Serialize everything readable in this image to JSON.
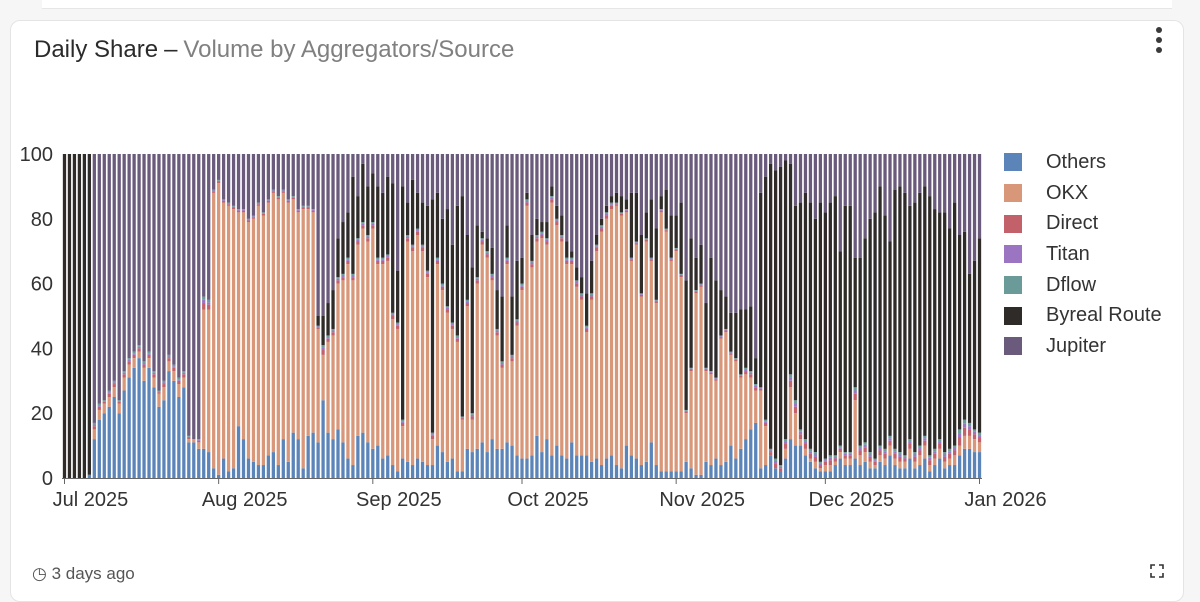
{
  "header": {
    "title": "Daily Share",
    "separator": "–",
    "subtitle": "Volume by Aggregators/Source",
    "menu_icon": "more-vertical-icon"
  },
  "footer": {
    "clock_icon": "clock-icon",
    "updated": "3 days ago",
    "expand_icon": "expand-icon"
  },
  "chart_data": {
    "type": "bar",
    "stacked": true,
    "title": "Daily Share – Volume by Aggregators/Source",
    "xlabel": "",
    "ylabel": "",
    "ylim": [
      0,
      100
    ],
    "yticks": [
      0,
      20,
      40,
      60,
      80,
      100
    ],
    "x_start": "2025-07-01",
    "x_end": "2026-01-15",
    "x_ticks": [
      {
        "label": "Jul 2025",
        "day": 0
      },
      {
        "label": "Aug 2025",
        "day": 31
      },
      {
        "label": "Sep 2025",
        "day": 62
      },
      {
        "label": "Oct 2025",
        "day": 92
      },
      {
        "label": "Nov 2025",
        "day": 123
      },
      {
        "label": "Dec 2025",
        "day": 153
      },
      {
        "label": "Jan 2026",
        "day": 184
      }
    ],
    "legend_position": "right",
    "series_order_bottom_to_top": [
      "Others",
      "OKX",
      "Direct",
      "Titan",
      "Dflow",
      "Byreal Route",
      "Jupiter"
    ],
    "legend": [
      {
        "name": "Others",
        "color": "#5b84b8"
      },
      {
        "name": "OKX",
        "color": "#d9977a"
      },
      {
        "name": "Direct",
        "color": "#c2616a"
      },
      {
        "name": "Titan",
        "color": "#9b74c2"
      },
      {
        "name": "Dflow",
        "color": "#6b9b98"
      },
      {
        "name": "Byreal Route",
        "color": "#2e2b28"
      },
      {
        "name": "Jupiter",
        "color": "#6a5a7c"
      }
    ],
    "daily_values_note": "per day: Others, OKX, Direct+Titan+Dflow (small), Byreal Route; Jupiter fills remainder to 100",
    "daily": [
      {
        "o": 0,
        "k": 0,
        "m": 0,
        "b": 100
      },
      {
        "o": 0,
        "k": 0,
        "m": 0,
        "b": 100
      },
      {
        "o": 0,
        "k": 0,
        "m": 0,
        "b": 100
      },
      {
        "o": 0,
        "k": 0,
        "m": 0,
        "b": 100
      },
      {
        "o": 0,
        "k": 0,
        "m": 0,
        "b": 100
      },
      {
        "o": 1,
        "k": 0,
        "m": 0,
        "b": 99
      },
      {
        "o": 12,
        "k": 3,
        "m": 2,
        "b": 0
      },
      {
        "o": 18,
        "k": 3,
        "m": 2,
        "b": 0
      },
      {
        "o": 20,
        "k": 3,
        "m": 1,
        "b": 0
      },
      {
        "o": 22,
        "k": 3,
        "m": 2,
        "b": 0
      },
      {
        "o": 25,
        "k": 3,
        "m": 2,
        "b": 0
      },
      {
        "o": 20,
        "k": 3,
        "m": 1,
        "b": 0
      },
      {
        "o": 27,
        "k": 4,
        "m": 2,
        "b": 0
      },
      {
        "o": 31,
        "k": 4,
        "m": 2,
        "b": 0
      },
      {
        "o": 34,
        "k": 3,
        "m": 2,
        "b": 0
      },
      {
        "o": 37,
        "k": 2,
        "m": 2,
        "b": 0
      },
      {
        "o": 30,
        "k": 4,
        "m": 2,
        "b": 0
      },
      {
        "o": 34,
        "k": 3,
        "m": 2,
        "b": 0
      },
      {
        "o": 28,
        "k": 3,
        "m": 2,
        "b": 0
      },
      {
        "o": 22,
        "k": 4,
        "m": 1,
        "b": 0
      },
      {
        "o": 24,
        "k": 4,
        "m": 2,
        "b": 0
      },
      {
        "o": 33,
        "k": 3,
        "m": 2,
        "b": 0
      },
      {
        "o": 30,
        "k": 3,
        "m": 2,
        "b": 0
      },
      {
        "o": 25,
        "k": 4,
        "m": 2,
        "b": 0
      },
      {
        "o": 28,
        "k": 3,
        "m": 2,
        "b": 0
      },
      {
        "o": 11,
        "k": 1,
        "m": 1,
        "b": 0
      },
      {
        "o": 11,
        "k": 1,
        "m": 0,
        "b": 0
      },
      {
        "o": 9,
        "k": 2,
        "m": 1,
        "b": 0
      },
      {
        "o": 9,
        "k": 43,
        "m": 4,
        "b": 0
      },
      {
        "o": 8,
        "k": 44,
        "m": 3,
        "b": 0
      },
      {
        "o": 3,
        "k": 85,
        "m": 1,
        "b": 0
      },
      {
        "o": 1,
        "k": 90,
        "m": 1,
        "b": 0
      },
      {
        "o": 6,
        "k": 79,
        "m": 1,
        "b": 0
      },
      {
        "o": 2,
        "k": 82,
        "m": 1,
        "b": 0
      },
      {
        "o": 3,
        "k": 80,
        "m": 1,
        "b": 0
      },
      {
        "o": 16,
        "k": 66,
        "m": 1,
        "b": 0
      },
      {
        "o": 12,
        "k": 70,
        "m": 1,
        "b": 0
      },
      {
        "o": 6,
        "k": 73,
        "m": 1,
        "b": 0
      },
      {
        "o": 5,
        "k": 75,
        "m": 1,
        "b": 0
      },
      {
        "o": 4,
        "k": 80,
        "m": 1,
        "b": 0
      },
      {
        "o": 4,
        "k": 77,
        "m": 1,
        "b": 0
      },
      {
        "o": 7,
        "k": 78,
        "m": 1,
        "b": 0
      },
      {
        "o": 8,
        "k": 80,
        "m": 1,
        "b": 0
      },
      {
        "o": 4,
        "k": 82,
        "m": 1,
        "b": 0
      },
      {
        "o": 12,
        "k": 76,
        "m": 1,
        "b": 0
      },
      {
        "o": 5,
        "k": 80,
        "m": 1,
        "b": 0
      },
      {
        "o": 14,
        "k": 72,
        "m": 1,
        "b": 0
      },
      {
        "o": 12,
        "k": 70,
        "m": 1,
        "b": 0
      },
      {
        "o": 3,
        "k": 80,
        "m": 1,
        "b": 0
      },
      {
        "o": 13,
        "k": 70,
        "m": 1,
        "b": 0
      },
      {
        "o": 14,
        "k": 68,
        "m": 1,
        "b": 0
      },
      {
        "o": 11,
        "k": 35,
        "m": 1,
        "b": 3
      },
      {
        "o": 24,
        "k": 14,
        "m": 3,
        "b": 9
      },
      {
        "o": 14,
        "k": 28,
        "m": 2,
        "b": 10
      },
      {
        "o": 12,
        "k": 32,
        "m": 2,
        "b": 12
      },
      {
        "o": 15,
        "k": 45,
        "m": 2,
        "b": 12
      },
      {
        "o": 11,
        "k": 50,
        "m": 2,
        "b": 16
      },
      {
        "o": 6,
        "k": 60,
        "m": 2,
        "b": 14
      },
      {
        "o": 4,
        "k": 57,
        "m": 2,
        "b": 30
      },
      {
        "o": 13,
        "k": 59,
        "m": 2,
        "b": 13
      },
      {
        "o": 14,
        "k": 63,
        "m": 2,
        "b": 18
      },
      {
        "o": 11,
        "k": 62,
        "m": 2,
        "b": 15
      },
      {
        "o": 9,
        "k": 68,
        "m": 2,
        "b": 15
      },
      {
        "o": 10,
        "k": 56,
        "m": 2,
        "b": 22
      },
      {
        "o": 6,
        "k": 60,
        "m": 2,
        "b": 20
      },
      {
        "o": 7,
        "k": 60,
        "m": 2,
        "b": 24
      },
      {
        "o": 4,
        "k": 45,
        "m": 2,
        "b": 40
      },
      {
        "o": 2,
        "k": 44,
        "m": 2,
        "b": 16
      },
      {
        "o": 6,
        "k": 10,
        "m": 2,
        "b": 72
      },
      {
        "o": 5,
        "k": 68,
        "m": 2,
        "b": 10
      },
      {
        "o": 4,
        "k": 66,
        "m": 2,
        "b": 20
      },
      {
        "o": 6,
        "k": 69,
        "m": 2,
        "b": 11
      },
      {
        "o": 5,
        "k": 65,
        "m": 2,
        "b": 13
      },
      {
        "o": 4,
        "k": 58,
        "m": 2,
        "b": 20
      },
      {
        "o": 4,
        "k": 8,
        "m": 2,
        "b": 72
      },
      {
        "o": 10,
        "k": 56,
        "m": 2,
        "b": 20
      },
      {
        "o": 8,
        "k": 50,
        "m": 2,
        "b": 20
      },
      {
        "o": 5,
        "k": 46,
        "m": 2,
        "b": 30
      },
      {
        "o": 6,
        "k": 40,
        "m": 2,
        "b": 24
      },
      {
        "o": 2,
        "k": 40,
        "m": 2,
        "b": 40
      },
      {
        "o": 2,
        "k": 16,
        "m": 1,
        "b": 68
      },
      {
        "o": 9,
        "k": 44,
        "m": 2,
        "b": 20
      },
      {
        "o": 8,
        "k": 10,
        "m": 2,
        "b": 45
      },
      {
        "o": 9,
        "k": 51,
        "m": 2,
        "b": 16
      },
      {
        "o": 11,
        "k": 61,
        "m": 2,
        "b": 2
      },
      {
        "o": 8,
        "k": 60,
        "m": 2,
        "b": 4
      },
      {
        "o": 12,
        "k": 49,
        "m": 2,
        "b": 8
      },
      {
        "o": 9,
        "k": 35,
        "m": 2,
        "b": 12
      },
      {
        "o": 9,
        "k": 25,
        "m": 2,
        "b": 20
      },
      {
        "o": 11,
        "k": 55,
        "m": 2,
        "b": 10
      },
      {
        "o": 10,
        "k": 26,
        "m": 2,
        "b": 18
      },
      {
        "o": 7,
        "k": 40,
        "m": 2,
        "b": 18
      },
      {
        "o": 6,
        "k": 52,
        "m": 2,
        "b": 8
      },
      {
        "o": 6,
        "k": 78,
        "m": 2,
        "b": 2
      },
      {
        "o": 7,
        "k": 58,
        "m": 2,
        "b": 8
      },
      {
        "o": 13,
        "k": 60,
        "m": 2,
        "b": 5
      },
      {
        "o": 8,
        "k": 66,
        "m": 2,
        "b": 3
      },
      {
        "o": 12,
        "k": 60,
        "m": 2,
        "b": 5
      },
      {
        "o": 7,
        "k": 78,
        "m": 2,
        "b": 3
      },
      {
        "o": 10,
        "k": 68,
        "m": 2,
        "b": 4
      },
      {
        "o": 7,
        "k": 66,
        "m": 2,
        "b": 6
      },
      {
        "o": 6,
        "k": 60,
        "m": 2,
        "b": 5
      },
      {
        "o": 11,
        "k": 55,
        "m": 2,
        "b": 2
      },
      {
        "o": 7,
        "k": 52,
        "m": 2,
        "b": 4
      },
      {
        "o": 7,
        "k": 48,
        "m": 2,
        "b": 5
      },
      {
        "o": 7,
        "k": 38,
        "m": 2,
        "b": 10
      },
      {
        "o": 5,
        "k": 50,
        "m": 2,
        "b": 10
      },
      {
        "o": 6,
        "k": 64,
        "m": 2,
        "b": 3
      },
      {
        "o": 4,
        "k": 72,
        "m": 2,
        "b": 2
      },
      {
        "o": 6,
        "k": 74,
        "m": 2,
        "b": 2
      },
      {
        "o": 7,
        "k": 76,
        "m": 2,
        "b": 2
      },
      {
        "o": 4,
        "k": 80,
        "m": 1,
        "b": 3
      },
      {
        "o": 3,
        "k": 78,
        "m": 1,
        "b": 5
      },
      {
        "o": 10,
        "k": 72,
        "m": 1,
        "b": 3
      },
      {
        "o": 7,
        "k": 60,
        "m": 1,
        "b": 20
      },
      {
        "o": 6,
        "k": 66,
        "m": 1,
        "b": 15
      },
      {
        "o": 4,
        "k": 52,
        "m": 1,
        "b": 18
      },
      {
        "o": 5,
        "k": 68,
        "m": 1,
        "b": 8
      },
      {
        "o": 11,
        "k": 56,
        "m": 1,
        "b": 18
      },
      {
        "o": 4,
        "k": 50,
        "m": 1,
        "b": 22
      },
      {
        "o": 2,
        "k": 80,
        "m": 1,
        "b": 4
      },
      {
        "o": 2,
        "k": 74,
        "m": 1,
        "b": 12
      },
      {
        "o": 2,
        "k": 65,
        "m": 1,
        "b": 13
      },
      {
        "o": 2,
        "k": 68,
        "m": 1,
        "b": 10
      },
      {
        "o": 2,
        "k": 60,
        "m": 1,
        "b": 22
      },
      {
        "o": 5,
        "k": 15,
        "m": 1,
        "b": 40
      },
      {
        "o": 3,
        "k": 30,
        "m": 1,
        "b": 40
      },
      {
        "o": 1,
        "k": 56,
        "m": 1,
        "b": 10
      },
      {
        "o": 1,
        "k": 58,
        "m": 1,
        "b": 12
      },
      {
        "o": 5,
        "k": 28,
        "m": 1,
        "b": 20
      },
      {
        "o": 4,
        "k": 28,
        "m": 1,
        "b": 35
      },
      {
        "o": 6,
        "k": 24,
        "m": 1,
        "b": 30
      },
      {
        "o": 4,
        "k": 39,
        "m": 1,
        "b": 14
      },
      {
        "o": 5,
        "k": 40,
        "m": 1,
        "b": 10
      },
      {
        "o": 10,
        "k": 28,
        "m": 1,
        "b": 12
      },
      {
        "o": 6,
        "k": 30,
        "m": 1,
        "b": 14
      },
      {
        "o": 9,
        "k": 22,
        "m": 1,
        "b": 20
      },
      {
        "o": 12,
        "k": 20,
        "m": 2,
        "b": 18
      },
      {
        "o": 15,
        "k": 16,
        "m": 2,
        "b": 20
      },
      {
        "o": 17,
        "k": 10,
        "m": 2,
        "b": 8
      },
      {
        "o": 3,
        "k": 24,
        "m": 1,
        "b": 60
      },
      {
        "o": 4,
        "k": 12,
        "m": 2,
        "b": 75
      },
      {
        "o": 7,
        "k": 0,
        "m": 2,
        "b": 88
      },
      {
        "o": 3,
        "k": 0,
        "m": 3,
        "b": 89
      },
      {
        "o": 2,
        "k": 0,
        "m": 2,
        "b": 92
      },
      {
        "o": 6,
        "k": 3,
        "m": 3,
        "b": 86
      },
      {
        "o": 12,
        "k": 16,
        "m": 4,
        "b": 65
      },
      {
        "o": 10,
        "k": 10,
        "m": 4,
        "b": 60
      },
      {
        "o": 10,
        "k": 2,
        "m": 3,
        "b": 70
      },
      {
        "o": 7,
        "k": 2,
        "m": 3,
        "b": 76
      },
      {
        "o": 5,
        "k": 1,
        "m": 3,
        "b": 76
      },
      {
        "o": 3,
        "k": 2,
        "m": 3,
        "b": 72
      },
      {
        "o": 2,
        "k": 1,
        "m": 2,
        "b": 80
      },
      {
        "o": 2,
        "k": 2,
        "m": 2,
        "b": 76
      },
      {
        "o": 2,
        "k": 2,
        "m": 3,
        "b": 78
      },
      {
        "o": 4,
        "k": 1,
        "m": 2,
        "b": 80
      },
      {
        "o": 6,
        "k": 2,
        "m": 2,
        "b": 60
      },
      {
        "o": 4,
        "k": 2,
        "m": 2,
        "b": 76
      },
      {
        "o": 4,
        "k": 2,
        "m": 2,
        "b": 76
      },
      {
        "o": 6,
        "k": 18,
        "m": 4,
        "b": 40
      },
      {
        "o": 4,
        "k": 3,
        "m": 3,
        "b": 58
      },
      {
        "o": 5,
        "k": 3,
        "m": 3,
        "b": 63
      },
      {
        "o": 3,
        "k": 2,
        "m": 3,
        "b": 72
      },
      {
        "o": 3,
        "k": 1,
        "m": 2,
        "b": 76
      },
      {
        "o": 5,
        "k": 2,
        "m": 3,
        "b": 80
      },
      {
        "o": 4,
        "k": 2,
        "m": 3,
        "b": 72
      },
      {
        "o": 7,
        "k": 3,
        "m": 3,
        "b": 60
      },
      {
        "o": 4,
        "k": 2,
        "m": 3,
        "b": 80
      },
      {
        "o": 3,
        "k": 2,
        "m": 3,
        "b": 82
      },
      {
        "o": 3,
        "k": 2,
        "m": 2,
        "b": 81
      },
      {
        "o": 6,
        "k": 3,
        "m": 3,
        "b": 72
      },
      {
        "o": 3,
        "k": 2,
        "m": 3,
        "b": 77
      },
      {
        "o": 4,
        "k": 3,
        "m": 3,
        "b": 78
      },
      {
        "o": 6,
        "k": 4,
        "m": 3,
        "b": 77
      },
      {
        "o": 2,
        "k": 2,
        "m": 3,
        "b": 80
      },
      {
        "o": 4,
        "k": 2,
        "m": 3,
        "b": 74
      },
      {
        "o": 6,
        "k": 3,
        "m": 3,
        "b": 70
      },
      {
        "o": 3,
        "k": 2,
        "m": 3,
        "b": 74
      },
      {
        "o": 4,
        "k": 2,
        "m": 3,
        "b": 68
      },
      {
        "o": 4,
        "k": 3,
        "m": 3,
        "b": 75
      },
      {
        "o": 7,
        "k": 3,
        "m": 5,
        "b": 60
      },
      {
        "o": 9,
        "k": 4,
        "m": 5,
        "b": 58
      },
      {
        "o": 9,
        "k": 4,
        "m": 4,
        "b": 46
      },
      {
        "o": 8,
        "k": 4,
        "m": 3,
        "b": 52
      },
      {
        "o": 8,
        "k": 3,
        "m": 3,
        "b": 60
      }
    ]
  }
}
